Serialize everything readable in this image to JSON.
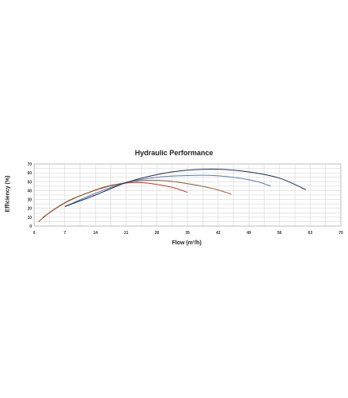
{
  "chart_data": {
    "type": "line",
    "title": "Hydraulic Performance",
    "xlabel": "Flow (m³/h)",
    "ylabel": "Efficiency (%)",
    "xlim": [
      0,
      70
    ],
    "ylim": [
      0,
      70
    ],
    "xticks": [
      "0",
      "7",
      "14",
      "21",
      "28",
      "35",
      "42",
      "49",
      "56",
      "63",
      "70"
    ],
    "yticks": [
      "0",
      "10",
      "20",
      "30",
      "40",
      "50",
      "60",
      "70"
    ],
    "grid": true,
    "legend": "none",
    "series": [
      {
        "color": "#c0392b",
        "points": [
          [
            1,
            5
          ],
          [
            4,
            17
          ],
          [
            8,
            29
          ],
          [
            12,
            37
          ],
          [
            16,
            44
          ],
          [
            20,
            48
          ],
          [
            24,
            49
          ],
          [
            28,
            47
          ],
          [
            32,
            43
          ],
          [
            35,
            38
          ]
        ]
      },
      {
        "color": "#8b5a2b",
        "points": [
          [
            2,
            10
          ],
          [
            7,
            26
          ],
          [
            12,
            37
          ],
          [
            18,
            46
          ],
          [
            24,
            51
          ],
          [
            30,
            51
          ],
          [
            36,
            47
          ],
          [
            41,
            42
          ],
          [
            45,
            36
          ]
        ]
      },
      {
        "color": "#5a7db8",
        "points": [
          [
            7,
            22
          ],
          [
            14,
            37
          ],
          [
            21,
            49
          ],
          [
            28,
            55
          ],
          [
            35,
            57
          ],
          [
            41,
            57
          ],
          [
            47,
            54
          ],
          [
            51,
            50
          ],
          [
            54,
            45
          ]
        ]
      },
      {
        "color": "#1c2e4a",
        "points": [
          [
            7,
            22
          ],
          [
            14,
            35
          ],
          [
            21,
            49
          ],
          [
            28,
            58
          ],
          [
            35,
            63
          ],
          [
            42,
            64
          ],
          [
            49,
            61
          ],
          [
            56,
            54
          ],
          [
            62,
            41
          ]
        ]
      }
    ]
  }
}
